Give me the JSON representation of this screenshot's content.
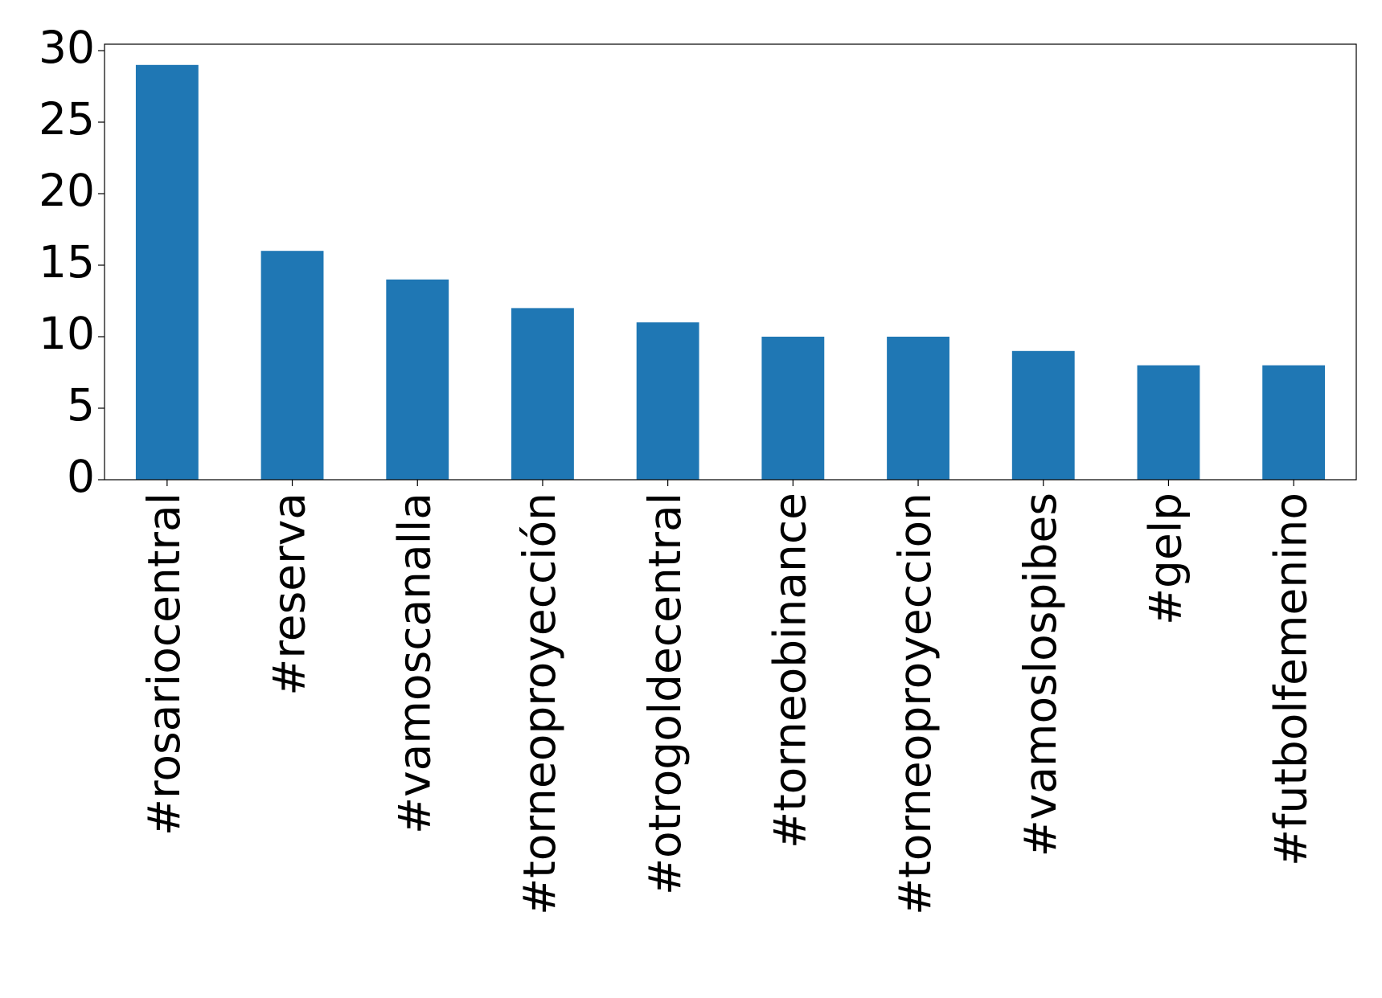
{
  "chart_data": {
    "type": "bar",
    "categories": [
      "#rosariocentral",
      "#reserva",
      "#vamoscanalla",
      "#torneoproyección",
      "#otrogoldecentral",
      "#torneobinance",
      "#torneoproyeccion",
      "#vamoslospibes",
      "#gelp",
      "#futbolfemenino"
    ],
    "values": [
      29,
      16,
      14,
      12,
      11,
      10,
      10,
      9,
      8,
      8
    ],
    "color": "#1f77b4",
    "ylim": [
      0,
      30.45
    ],
    "yticks": [
      0,
      5,
      10,
      15,
      20,
      25,
      30
    ],
    "grid": false
  }
}
